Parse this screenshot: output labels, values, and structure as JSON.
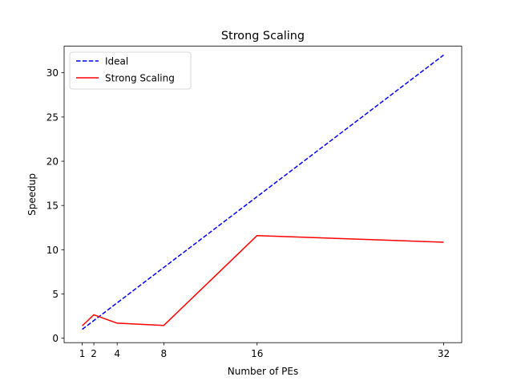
{
  "chart_data": {
    "type": "line",
    "title": "Strong Scaling",
    "xlabel": "Number of PEs",
    "ylabel": "Speedup",
    "xlim": [
      -0.55,
      33.55
    ],
    "ylim": [
      -0.5,
      33.0
    ],
    "xticks": [
      1,
      2,
      4,
      8,
      16,
      32
    ],
    "yticks": [
      0,
      5,
      10,
      15,
      20,
      25,
      30
    ],
    "grid": false,
    "legend_position": "upper-left",
    "series": [
      {
        "name": "Ideal",
        "color": "#0000ff",
        "style": "dashed",
        "x": [
          1,
          2,
          4,
          8,
          16,
          32
        ],
        "y": [
          1,
          2,
          4,
          8,
          16,
          32
        ]
      },
      {
        "name": "Strong Scaling",
        "color": "#ff0000",
        "style": "solid",
        "x": [
          1,
          2,
          4,
          8,
          16,
          32
        ],
        "y": [
          1.4,
          2.65,
          1.7,
          1.45,
          11.6,
          10.85
        ]
      }
    ]
  }
}
